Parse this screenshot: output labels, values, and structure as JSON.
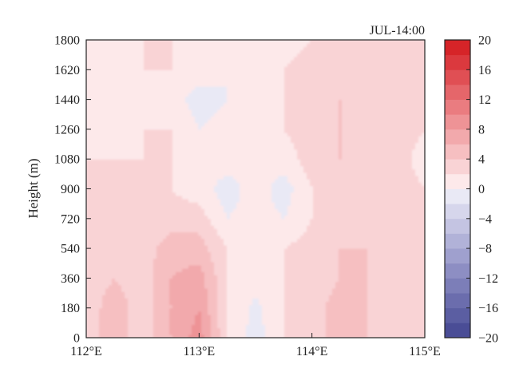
{
  "chart_data": {
    "type": "heatmap",
    "title": "JUL-14:00",
    "xlabel": "",
    "ylabel": "Height (m)",
    "x_ticks": [
      "112°E",
      "113°E",
      "114°E",
      "115°E"
    ],
    "y_ticks": [
      "0",
      "180",
      "360",
      "540",
      "720",
      "900",
      "1080",
      "1260",
      "1440",
      "1620",
      "1800"
    ],
    "xlim": [
      112,
      115
    ],
    "ylim": [
      0,
      1800
    ],
    "colorbar": {
      "ticks": [
        "20",
        "16",
        "12",
        "8",
        "4",
        "0",
        "−4",
        "−8",
        "−12",
        "−16",
        "−20"
      ],
      "range": [
        -20,
        20
      ],
      "levels": [
        -20,
        -18,
        -16,
        -14,
        -12,
        -10,
        -8,
        -6,
        -4,
        -2,
        0,
        2,
        4,
        6,
        8,
        10,
        12,
        14,
        16,
        18,
        20
      ],
      "colors": [
        "#4a4d96",
        "#5b5ea2",
        "#6b6dad",
        "#7c7eb8",
        "#8d8ec3",
        "#9fa0ce",
        "#b1b2d8",
        "#c4c4e2",
        "#d6d6ec",
        "#e9e9f5",
        "#fde9ea",
        "#f9d3d5",
        "#f6bfc1",
        "#f2a9ac",
        "#ee9396",
        "#ea7c80",
        "#e5666a",
        "#e04f54",
        "#db393e",
        "#d62428"
      ]
    },
    "field": {
      "x": [
        112.0,
        112.25,
        112.5,
        112.75,
        113.0,
        113.25,
        113.5,
        113.75,
        114.0,
        114.25,
        114.5,
        114.75,
        115.0
      ],
      "y": [
        0,
        180,
        360,
        540,
        720,
        900,
        1080,
        1260,
        1440,
        1620,
        1800
      ],
      "values": [
        [
          3,
          5,
          3,
          6,
          9,
          2,
          -1,
          2,
          3,
          5,
          4,
          3,
          3
        ],
        [
          3,
          5,
          3,
          6,
          8,
          2,
          -0.5,
          2,
          3,
          5,
          4,
          3,
          3
        ],
        [
          3,
          4,
          3,
          6,
          7,
          2,
          0.5,
          2,
          3,
          4,
          4,
          3,
          3
        ],
        [
          3,
          3,
          3,
          5,
          5,
          2,
          1,
          2,
          3,
          4,
          4,
          3,
          2
        ],
        [
          2,
          3,
          2,
          3,
          3,
          0,
          1,
          0,
          2,
          3,
          4,
          3,
          2
        ],
        [
          2,
          2,
          2,
          2,
          1,
          -1,
          1,
          -1,
          2,
          3,
          3,
          3,
          2
        ],
        [
          2,
          2,
          2,
          2,
          1,
          1,
          1,
          1,
          3,
          4,
          3,
          3,
          1
        ],
        [
          0,
          1,
          2,
          2,
          0,
          1,
          1,
          2,
          3,
          4,
          4,
          3,
          2
        ],
        [
          0,
          1,
          2,
          1,
          -1,
          0,
          2,
          2,
          3,
          4,
          3,
          3,
          2
        ],
        [
          1,
          1,
          2,
          2,
          1,
          0,
          1,
          2,
          3,
          3,
          2,
          3,
          3
        ],
        [
          2,
          2,
          2,
          2,
          1,
          0,
          1,
          1,
          2,
          2,
          2,
          3,
          3
        ]
      ]
    }
  }
}
